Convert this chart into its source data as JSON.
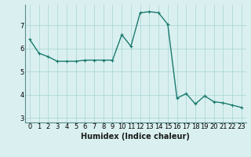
{
  "x": [
    0,
    1,
    2,
    3,
    4,
    5,
    6,
    7,
    8,
    9,
    10,
    11,
    12,
    13,
    14,
    15,
    16,
    17,
    18,
    19,
    20,
    21,
    22,
    23
  ],
  "y": [
    6.4,
    5.8,
    5.65,
    5.45,
    5.45,
    5.45,
    5.5,
    5.5,
    5.5,
    5.5,
    6.6,
    6.1,
    7.55,
    7.6,
    7.55,
    7.05,
    3.85,
    4.05,
    3.6,
    3.95,
    3.7,
    3.65,
    3.55,
    3.45
  ],
  "line_color": "#1a7a6e",
  "marker": "+",
  "marker_size": 3,
  "line_width": 1.0,
  "bg_color": "#daf0f0",
  "grid_color": "#aed8d8",
  "xlabel": "Humidex (Indice chaleur)",
  "yticks": [
    3,
    4,
    5,
    6,
    7
  ],
  "xticks": [
    0,
    1,
    2,
    3,
    4,
    5,
    6,
    7,
    8,
    9,
    10,
    11,
    12,
    13,
    14,
    15,
    16,
    17,
    18,
    19,
    20,
    21,
    22,
    23
  ],
  "xlim": [
    -0.5,
    23.5
  ],
  "ylim": [
    2.8,
    7.9
  ],
  "tick_fontsize": 6,
  "xlabel_fontsize": 7
}
